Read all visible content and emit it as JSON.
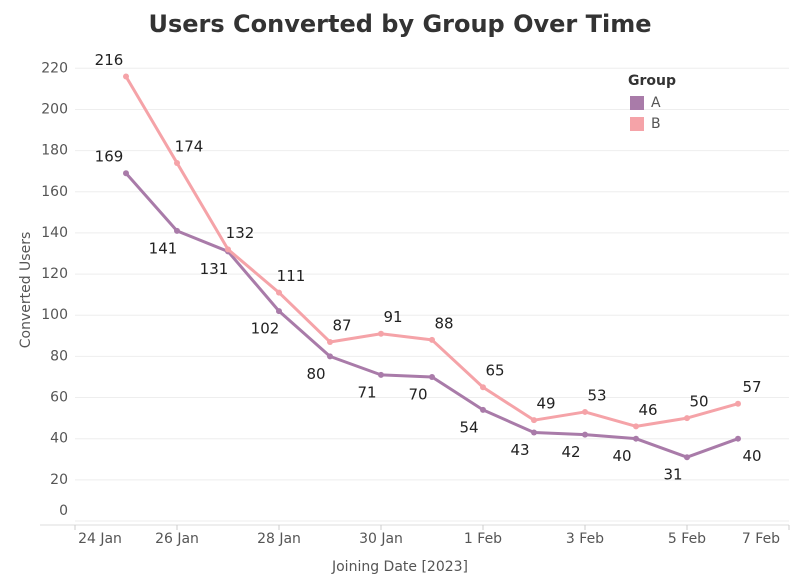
{
  "chart_data": {
    "type": "line",
    "title": "Users Converted by Group Over Time",
    "x_label": "Joining Date [2023]",
    "y_label": "Converted Users",
    "legend_title": "Group",
    "legend_position": "upper right",
    "grid": true,
    "x": [
      "2023-01-25",
      "2023-01-26",
      "2023-01-27",
      "2023-01-28",
      "2023-01-29",
      "2023-01-30",
      "2023-01-31",
      "2023-02-01",
      "2023-02-02",
      "2023-02-03",
      "2023-02-04",
      "2023-02-05",
      "2023-02-06"
    ],
    "series": [
      {
        "name": "A",
        "color": "#a97ba9",
        "values": [
          169,
          141,
          131,
          102,
          80,
          71,
          70,
          54,
          43,
          42,
          40,
          31,
          40
        ]
      },
      {
        "name": "B",
        "color": "#f5a3a8",
        "values": [
          216,
          174,
          132,
          111,
          87,
          91,
          88,
          65,
          49,
          53,
          46,
          50,
          57
        ]
      }
    ],
    "xlim": [
      "2023-01-24",
      "2023-02-07"
    ],
    "xticks": [
      {
        "value": "2023-01-24",
        "label": "24 Jan"
      },
      {
        "value": "2023-01-26",
        "label": "26 Jan"
      },
      {
        "value": "2023-01-28",
        "label": "28 Jan"
      },
      {
        "value": "2023-01-30",
        "label": "30 Jan"
      },
      {
        "value": "2023-02-01",
        "label": "1 Feb"
      },
      {
        "value": "2023-02-03",
        "label": "3 Feb"
      },
      {
        "value": "2023-02-05",
        "label": "5 Feb"
      },
      {
        "value": "2023-02-07",
        "label": "7 Feb"
      }
    ],
    "ylim": [
      0,
      225
    ],
    "yticks": [
      0,
      20,
      40,
      60,
      80,
      100,
      120,
      140,
      160,
      180,
      200,
      220
    ]
  }
}
